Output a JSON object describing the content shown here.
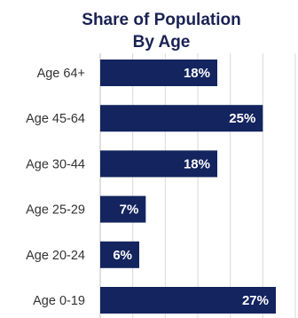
{
  "chart_data": {
    "type": "bar",
    "orientation": "horizontal",
    "title_lines": [
      "Share of Population",
      "By Age"
    ],
    "categories": [
      "Age 64+",
      "Age 45-64",
      "Age 30-44",
      "Age 25-29",
      "Age 20-24",
      "Age 0-19"
    ],
    "values": [
      18,
      25,
      18,
      7,
      6,
      27
    ],
    "value_labels": [
      "18%",
      "25%",
      "18%",
      "7%",
      "6%",
      "27%"
    ],
    "xlim": [
      0,
      30
    ],
    "grid": true,
    "legend": "none",
    "bar_color": "#13245f"
  }
}
